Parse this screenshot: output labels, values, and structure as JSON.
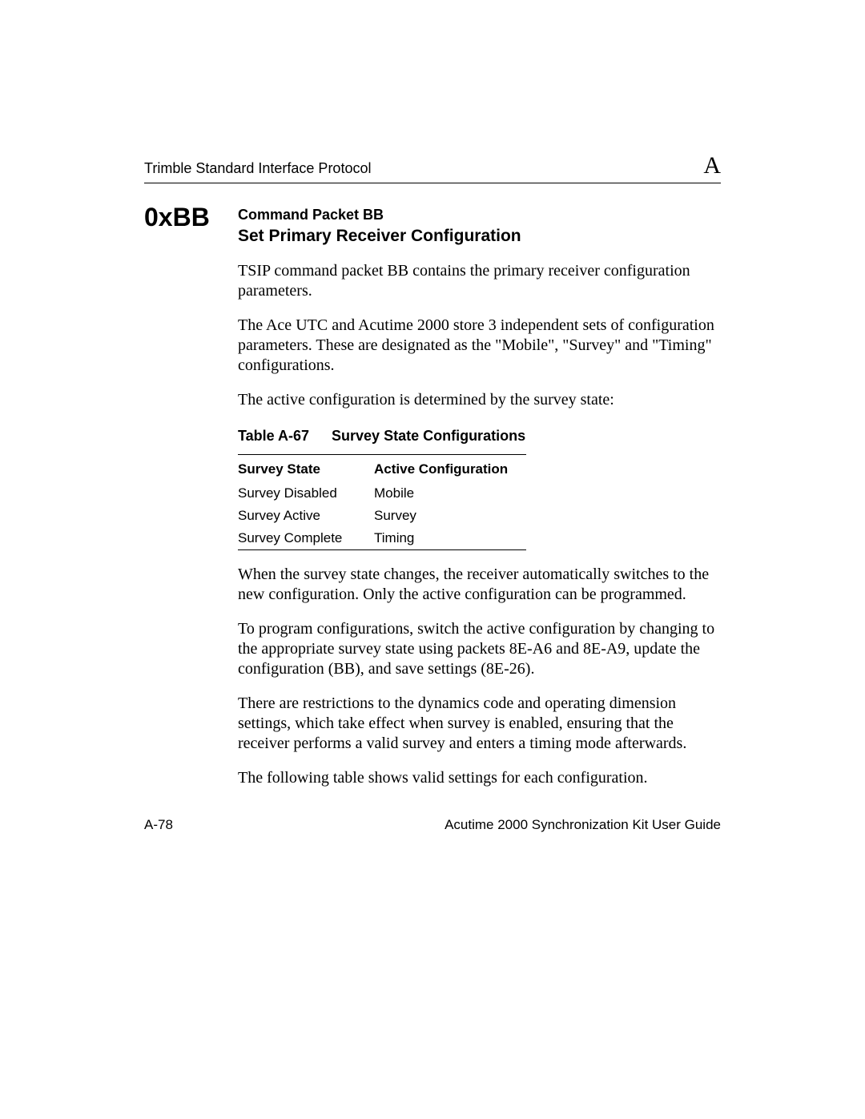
{
  "header": {
    "left": "Trimble Standard Interface Protocol",
    "right": "A"
  },
  "section": {
    "code": "0xBB",
    "command_line": "Command Packet BB",
    "subtitle": "Set Primary Receiver Configuration"
  },
  "paragraphs": {
    "p1": "TSIP command packet BB contains the primary receiver configuration parameters.",
    "p2": "The Ace UTC and Acutime 2000 store 3 independent sets of configuration parameters. These are designated as the \"Mobile\", \"Survey\" and \"Timing\" configurations.",
    "p3": "The active configuration is determined by the survey state:",
    "p4": "When the survey state changes, the receiver automatically switches to the new configuration. Only the active configuration can be programmed.",
    "p5": "To program configurations, switch the active configuration by changing to the appropriate survey state using packets 8E-A6 and 8E-A9, update the configuration (BB), and save settings (8E-26).",
    "p6": "There are restrictions to the dynamics code and operating dimension settings, which take effect when survey is enabled, ensuring that the receiver performs a valid survey and enters a timing mode afterwards.",
    "p7": "The following table shows valid settings for each configuration."
  },
  "table": {
    "number": "Table A-67",
    "title": "Survey State Configurations",
    "columns": [
      "Survey State",
      "Active Configuration"
    ],
    "rows": [
      [
        "Survey Disabled",
        "Mobile"
      ],
      [
        "Survey Active",
        "Survey"
      ],
      [
        "Survey Complete",
        "Timing"
      ]
    ]
  },
  "footer": {
    "left": "A-78",
    "right": "Acutime 2000 Synchronization Kit User Guide"
  }
}
